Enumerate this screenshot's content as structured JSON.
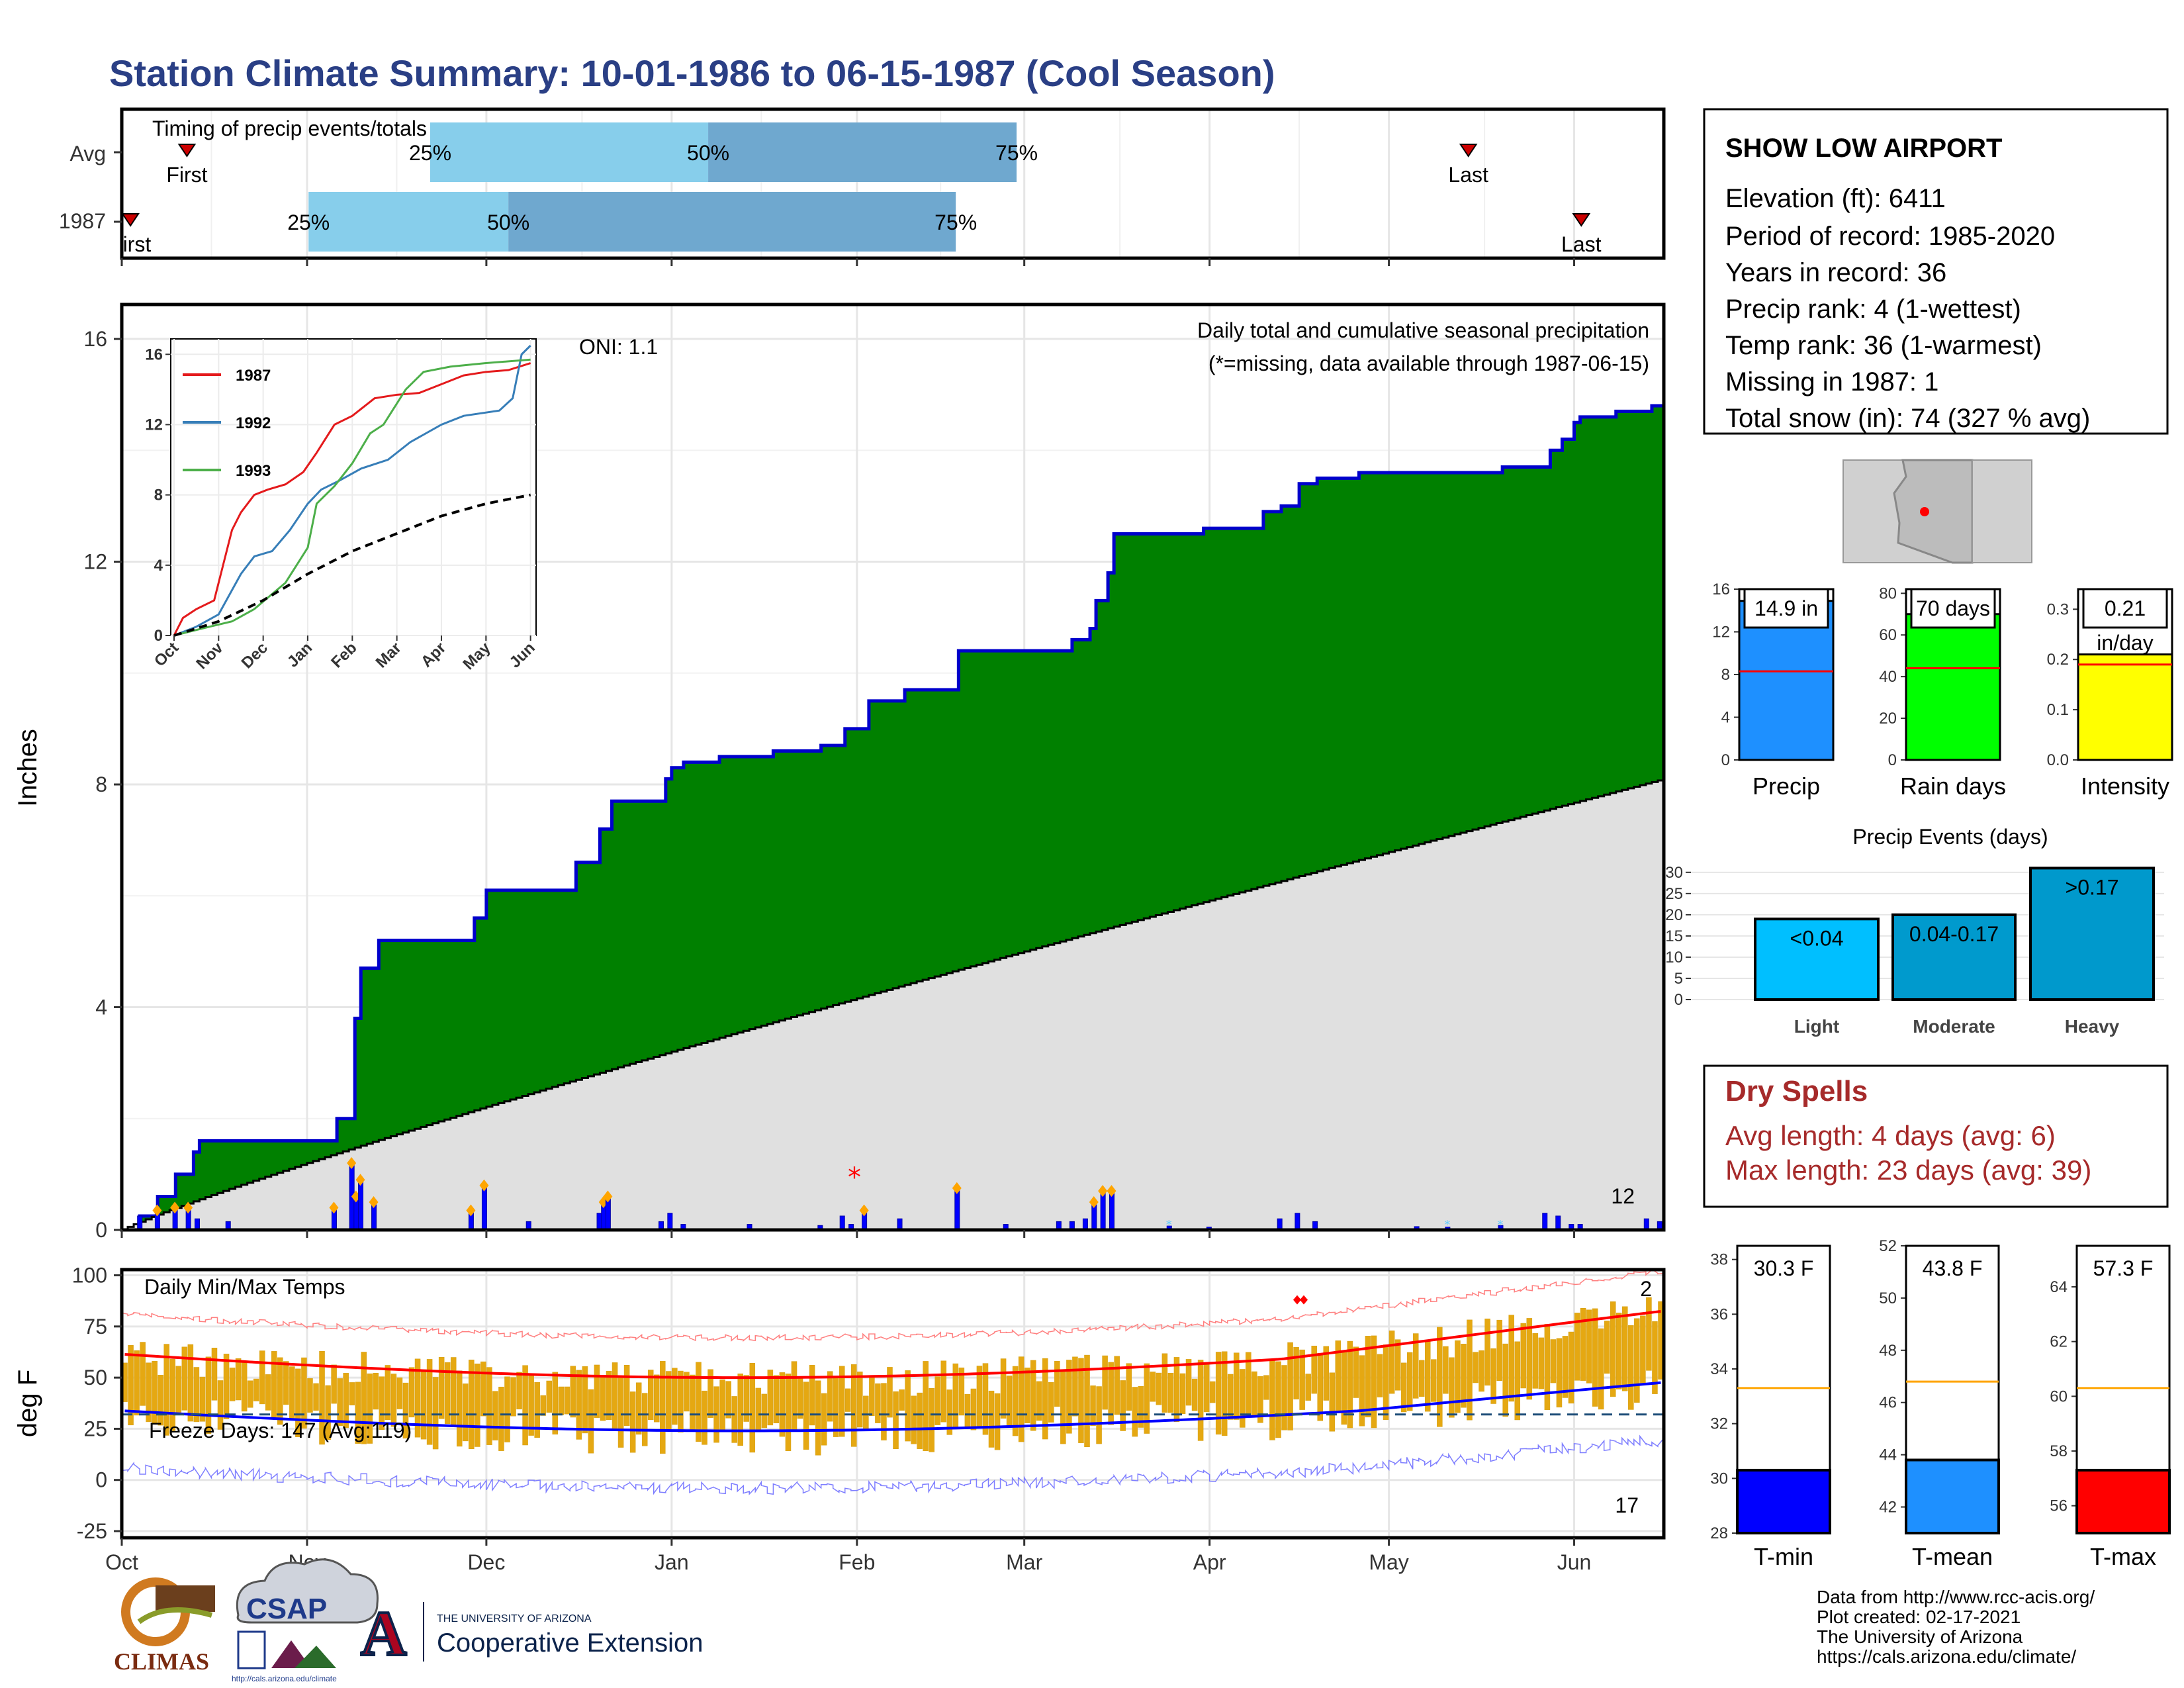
{
  "page": {
    "title": "Station Climate Summary: 10-01-1986 to 06-15-1987 (Cool Season)"
  },
  "timing": {
    "label": "Timing of precip events/totals",
    "rows": [
      {
        "name": "Avg",
        "first": "First",
        "last": "Last",
        "p25": "25%",
        "p50": "50%",
        "p75": "75%",
        "first_day": 15,
        "p25_day": 71,
        "p50_day": 135,
        "p75_day": 206,
        "last_day": 310
      },
      {
        "name": "1987",
        "first": "First",
        "last": "Last",
        "p25": "25%",
        "p50": "50%",
        "p75": "75%",
        "first_day": 2,
        "p25_day": 43,
        "p50_day": 89,
        "p75_day": 192,
        "last_day": 336
      }
    ]
  },
  "precip_panel": {
    "ylabel": "Inches",
    "oni": "ONI: 1.1",
    "caption": "Daily total and cumulative seasonal precipitation",
    "missing_note": "(*=missing, data available through 1987-06-15)",
    "count_label": "12",
    "yticks": [
      "0",
      "4",
      "8",
      "12",
      "16"
    ]
  },
  "inset": {
    "yticks": [
      "0",
      "4",
      "8",
      "12",
      "16"
    ],
    "xticks": [
      "Oct",
      "Nov",
      "Dec",
      "Jan",
      "Feb",
      "Mar",
      "Apr",
      "May",
      "Jun"
    ],
    "legend": [
      "1987",
      "1992",
      "1993"
    ]
  },
  "temp_panel": {
    "ylabel": "deg F",
    "title": "Daily Min/Max Temps",
    "freeze": "Freeze Days: 147 (Avg:119)",
    "top_count": "2",
    "bottom_count": "17",
    "yticks": [
      "-25",
      "0",
      "25",
      "50",
      "75",
      "100"
    ]
  },
  "months": [
    "Oct",
    "Nov",
    "Dec",
    "Jan",
    "Feb",
    "Mar",
    "Apr",
    "May",
    "Jun"
  ],
  "info": {
    "station": "SHOW LOW AIRPORT",
    "lines": [
      "Elevation (ft): 6411",
      "Period of record: 1985-2020",
      "Years in record: 36",
      "Precip rank: 4 (1-wettest)",
      "Temp rank: 36 (1-warmest)",
      "Missing in 1987: 1",
      "Total snow (in): 74 (327 % avg)"
    ]
  },
  "mini_bars": [
    {
      "label": "Precip",
      "value_text": "14.9 in",
      "yticks": [
        "0",
        "4",
        "8",
        "12",
        "16"
      ],
      "color": "#1e90ff"
    },
    {
      "label": "Rain days",
      "value_text": "70 days",
      "yticks": [
        "0",
        "20",
        "40",
        "60",
        "80"
      ],
      "color": "#00ff00"
    },
    {
      "label": "Intensity",
      "value_text": "0.21",
      "value_text2": "in/day",
      "yticks": [
        "0.0",
        "0.1",
        "0.2",
        "0.3"
      ],
      "color": "#ffff00"
    }
  ],
  "precip_events": {
    "title": "Precip Events (days)",
    "yticks": [
      "0",
      "5",
      "10",
      "15",
      "20",
      "25",
      "30"
    ],
    "bars": [
      {
        "category": "Light",
        "label": "<0.04",
        "color": "#00bfff"
      },
      {
        "category": "Moderate",
        "label": "0.04-0.17",
        "color": "#009acd"
      },
      {
        "category": "Heavy",
        "label": ">0.17",
        "color": "#0099cc"
      }
    ]
  },
  "dry_spells": {
    "title": "Dry Spells",
    "avg": "Avg length: 4 days (avg: 6)",
    "max": "Max length: 23 days (avg: 39)"
  },
  "temp_bars": [
    {
      "label": "T-min",
      "value_text": "30.3 F",
      "yticks": [
        "28",
        "30",
        "32",
        "34",
        "36",
        "38"
      ],
      "color": "#0000ff"
    },
    {
      "label": "T-mean",
      "value_text": "43.8 F",
      "yticks": [
        "42",
        "44",
        "46",
        "48",
        "50",
        "52"
      ],
      "color": "#1e90ff"
    },
    {
      "label": "T-max",
      "value_text": "57.3 F",
      "yticks": [
        "56",
        "58",
        "60",
        "62",
        "64"
      ],
      "color": "#ff0000"
    }
  ],
  "credits": [
    "Data from http://www.rcc-acis.org/",
    "Plot created: 02-17-2021",
    "The University of Arizona",
    "https://cals.arizona.edu/climate/"
  ],
  "logos": {
    "climas": "CLIMAS",
    "csap": "CSAP",
    "csap_url": "http://cals.arizona.edu/climate",
    "ua_small": "THE UNIVERSITY OF ARIZONA",
    "ua_big": "Cooperative Extension",
    "ua_letter": "A"
  },
  "chart_data": [
    {
      "type": "area",
      "title": "Daily total and cumulative seasonal precipitation",
      "ylabel": "Inches",
      "ylim": [
        0,
        16
      ],
      "x_start": "1986-10-01",
      "x_end": "1987-06-15",
      "series": [
        {
          "name": "1987",
          "steps": [
            [
              0,
              0
            ],
            [
              4,
              0.25
            ],
            [
              8,
              0.6
            ],
            [
              12,
              1.0
            ],
            [
              15,
              1.4
            ],
            [
              17,
              1.6
            ],
            [
              30,
              1.6
            ],
            [
              45,
              1.6
            ],
            [
              48,
              2.0
            ],
            [
              52,
              3.8
            ],
            [
              54,
              4.7
            ],
            [
              57,
              5.2
            ],
            [
              70,
              5.2
            ],
            [
              79,
              5.6
            ],
            [
              82,
              6.1
            ],
            [
              98,
              6.1
            ],
            [
              102,
              6.6
            ],
            [
              108,
              7.2
            ],
            [
              110,
              7.7
            ],
            [
              120,
              7.7
            ],
            [
              122,
              8.1
            ],
            [
              124,
              8.3
            ],
            [
              127,
              8.4
            ],
            [
              135,
              8.5
            ],
            [
              142,
              8.5
            ],
            [
              147,
              8.6
            ],
            [
              158,
              8.7
            ],
            [
              163,
              9.0
            ],
            [
              168,
              9.5
            ],
            [
              176,
              9.7
            ],
            [
              186,
              9.7
            ],
            [
              189,
              10.4
            ],
            [
              200,
              10.4
            ],
            [
              212,
              10.4
            ],
            [
              215,
              10.6
            ],
            [
              218,
              10.8
            ],
            [
              220,
              11.3
            ],
            [
              222,
              11.8
            ],
            [
              224,
              12.5
            ],
            [
              237,
              12.5
            ],
            [
              244,
              12.6
            ],
            [
              258,
              12.9
            ],
            [
              262,
              13.0
            ],
            [
              266,
              13.4
            ],
            [
              270,
              13.5
            ],
            [
              280,
              13.6
            ],
            [
              293,
              13.6
            ],
            [
              302,
              13.6
            ],
            [
              312,
              13.7
            ],
            [
              322,
              14.0
            ],
            [
              325,
              14.2
            ],
            [
              328,
              14.5
            ],
            [
              330,
              14.6
            ],
            [
              338,
              14.7
            ],
            [
              345,
              14.8
            ],
            [
              348,
              14.9
            ]
          ]
        },
        {
          "name": "Average",
          "linear_to": 8.1
        }
      ]
    },
    {
      "type": "line",
      "title": "Cumulative precipitation (inset)",
      "ylim": [
        0,
        16
      ],
      "x_months": [
        "Oct",
        "Nov",
        "Dec",
        "Jan",
        "Feb",
        "Mar",
        "Apr",
        "May",
        "Jun"
      ],
      "series": [
        {
          "name": "1987",
          "color": "#e41a1c",
          "points": [
            [
              0,
              0
            ],
            [
              0.2,
              1
            ],
            [
              0.5,
              1.5
            ],
            [
              0.9,
              2
            ],
            [
              1.1,
              4
            ],
            [
              1.3,
              6
            ],
            [
              1.5,
              7
            ],
            [
              1.8,
              8
            ],
            [
              2.1,
              8.3
            ],
            [
              2.5,
              8.6
            ],
            [
              2.9,
              9.3
            ],
            [
              3.2,
              10.4
            ],
            [
              3.6,
              12.0
            ],
            [
              4.0,
              12.5
            ],
            [
              4.5,
              13.5
            ],
            [
              5.0,
              13.7
            ],
            [
              5.5,
              13.8
            ],
            [
              6.1,
              14.4
            ],
            [
              6.5,
              14.8
            ],
            [
              7.0,
              15.0
            ],
            [
              7.5,
              15.1
            ],
            [
              8.0,
              15.5
            ]
          ]
        },
        {
          "name": "1992",
          "color": "#377eb8",
          "points": [
            [
              0,
              0
            ],
            [
              0.5,
              0.5
            ],
            [
              1.0,
              1.2
            ],
            [
              1.5,
              3.5
            ],
            [
              1.8,
              4.5
            ],
            [
              2.2,
              4.8
            ],
            [
              2.6,
              6.0
            ],
            [
              3.0,
              7.5
            ],
            [
              3.3,
              8.3
            ],
            [
              3.7,
              8.8
            ],
            [
              4.2,
              9.5
            ],
            [
              4.8,
              10.0
            ],
            [
              5.3,
              11.0
            ],
            [
              6.0,
              12.0
            ],
            [
              6.5,
              12.5
            ],
            [
              7.3,
              12.8
            ],
            [
              7.6,
              13.5
            ],
            [
              7.8,
              16.0
            ],
            [
              8.0,
              16.5
            ]
          ]
        },
        {
          "name": "1993",
          "color": "#4daf4a",
          "points": [
            [
              0,
              0
            ],
            [
              0.8,
              0.5
            ],
            [
              1.3,
              0.8
            ],
            [
              1.8,
              1.5
            ],
            [
              2.5,
              3.0
            ],
            [
              3.0,
              5.0
            ],
            [
              3.2,
              7.5
            ],
            [
              3.6,
              8.5
            ],
            [
              4.0,
              9.8
            ],
            [
              4.4,
              11.5
            ],
            [
              4.7,
              12.0
            ],
            [
              5.2,
              14.0
            ],
            [
              5.6,
              15.0
            ],
            [
              6.2,
              15.3
            ],
            [
              7.0,
              15.5
            ],
            [
              8.0,
              15.7
            ]
          ]
        },
        {
          "name": "Average",
          "color": "#000000",
          "dashed": true,
          "points": [
            [
              0,
              0
            ],
            [
              1,
              0.8
            ],
            [
              2,
              2.0
            ],
            [
              3,
              3.5
            ],
            [
              4,
              4.8
            ],
            [
              5,
              5.8
            ],
            [
              6,
              6.8
            ],
            [
              7,
              7.5
            ],
            [
              8,
              8.0
            ]
          ]
        }
      ]
    },
    {
      "type": "bar",
      "title": "Daily Min/Max Temps",
      "ylabel": "deg F",
      "ylim": [
        -25,
        100
      ],
      "freeze_line": 32,
      "note": "Daily min/max temperature bars with average (red max, blue min) and record envelope"
    },
    {
      "type": "bar",
      "title": "Precip",
      "categories": [
        "Precip"
      ],
      "values": [
        14.9
      ],
      "ylim": [
        0,
        16
      ],
      "reference": 8.3
    },
    {
      "type": "bar",
      "title": "Rain days",
      "categories": [
        "Rain days"
      ],
      "values": [
        70
      ],
      "ylim": [
        0,
        82
      ],
      "reference": 44
    },
    {
      "type": "bar",
      "title": "Intensity",
      "categories": [
        "Intensity"
      ],
      "values": [
        0.21
      ],
      "ylim": [
        0,
        0.34
      ],
      "reference": 0.19
    },
    {
      "type": "bar",
      "title": "Precip Events (days)",
      "categories": [
        "Light",
        "Moderate",
        "Heavy"
      ],
      "values": [
        19,
        20,
        31
      ],
      "ylim": [
        0,
        32
      ]
    },
    {
      "type": "bar",
      "title": "T-min",
      "categories": [
        "T-min"
      ],
      "values": [
        30.3
      ],
      "ylim": [
        28,
        38.5
      ],
      "reference": 33.3
    },
    {
      "type": "bar",
      "title": "T-mean",
      "categories": [
        "T-mean"
      ],
      "values": [
        43.8
      ],
      "ylim": [
        41,
        52
      ],
      "reference": 46.8
    },
    {
      "type": "bar",
      "title": "T-max",
      "categories": [
        "T-max"
      ],
      "values": [
        57.3
      ],
      "ylim": [
        55,
        65.5
      ],
      "reference": 60.3
    }
  ]
}
